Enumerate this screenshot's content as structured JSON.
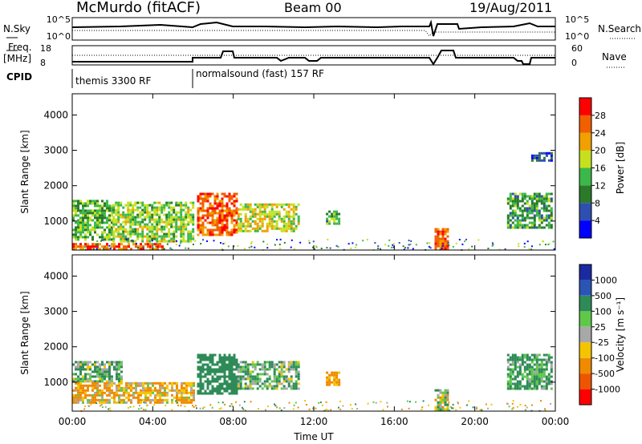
{
  "header": {
    "station": "McMurdo (fitACF)",
    "beam": "Beam 00",
    "date": "19/Aug/2011"
  },
  "strip": {
    "nsky_label": "N.Sky",
    "nsky_ticks": [
      "10^5",
      "10^0"
    ],
    "nsearch_label": "N.Search",
    "freq_label_1": "Freq.",
    "freq_label_2": "[MHz]",
    "freq_ticks": [
      "18",
      "8"
    ],
    "nave_label": "Nave",
    "nave_ticks": [
      "60",
      "0"
    ],
    "cpid_label": "CPID",
    "cpid_1": "themis 3300 RF",
    "cpid_2": "normalsound (fast) 157 RF"
  },
  "colors": {
    "power_scale": [
      "#0000ff",
      "#2f4fb0",
      "#2a7a2a",
      "#3cb84a",
      "#c6e020",
      "#f0a000",
      "#f06000",
      "#ff0000"
    ],
    "velocity_scale": [
      "#ff0000",
      "#ee5500",
      "#f08a00",
      "#f4c400",
      "#a8a8a8",
      "#5fc84a",
      "#2e8b57",
      "#2a55b5",
      "#1a2aa0"
    ]
  },
  "chart_data": [
    {
      "type": "heatmap",
      "name": "power",
      "title": "",
      "xlabel": "",
      "ylabel": "Slant Range [km]",
      "x_ticks": [
        "00:00",
        "04:00",
        "08:00",
        "12:00",
        "16:00",
        "20:00",
        "00:00"
      ],
      "xlim_hours": [
        0,
        24
      ],
      "y_ticks": [
        1000,
        2000,
        3000,
        4000
      ],
      "ylim_km": [
        180,
        4600
      ],
      "colorbar": {
        "label": "Power [dB]",
        "ticks": [
          4,
          8,
          12,
          16,
          20,
          24,
          28
        ],
        "range": [
          0,
          32
        ]
      },
      "regions": [
        {
          "t0": 0.0,
          "t1": 2.0,
          "r0": 500,
          "r1": 1600,
          "value": 14
        },
        {
          "t0": 2.0,
          "t1": 6.0,
          "r0": 400,
          "r1": 1550,
          "value": 16
        },
        {
          "t0": 0.0,
          "t1": 4.5,
          "r0": 180,
          "r1": 380,
          "value": 26
        },
        {
          "t0": 6.2,
          "t1": 8.2,
          "r0": 600,
          "r1": 1800,
          "value": 26
        },
        {
          "t0": 8.2,
          "t1": 11.2,
          "r0": 700,
          "r1": 1500,
          "value": 18
        },
        {
          "t0": 12.6,
          "t1": 13.3,
          "r0": 950,
          "r1": 1300,
          "value": 12
        },
        {
          "t0": 18.0,
          "t1": 18.6,
          "r0": 250,
          "r1": 800,
          "value": 26
        },
        {
          "t0": 21.6,
          "t1": 23.8,
          "r0": 800,
          "r1": 1800,
          "value": 12
        },
        {
          "t0": 22.8,
          "t1": 23.8,
          "r0": 2700,
          "r1": 2950,
          "value": 6
        }
      ]
    },
    {
      "type": "heatmap",
      "name": "velocity",
      "title": "",
      "xlabel": "Time UT",
      "ylabel": "Slant Range [km]",
      "x_ticks": [
        "00:00",
        "04:00",
        "08:00",
        "12:00",
        "16:00",
        "20:00",
        "00:00"
      ],
      "xlim_hours": [
        0,
        24
      ],
      "y_ticks": [
        1000,
        2000,
        3000,
        4000
      ],
      "ylim_km": [
        180,
        4600
      ],
      "colorbar": {
        "label": "Velocity [m s⁻¹]",
        "ticks": [
          "-1000",
          "-500",
          "-100",
          "-25",
          "25",
          "100",
          "500",
          "1000"
        ]
      },
      "regions": [
        {
          "t0": 0.0,
          "t1": 2.5,
          "r0": 1000,
          "r1": 1600,
          "value": 100
        },
        {
          "t0": 0.0,
          "t1": 6.0,
          "r0": 400,
          "r1": 1000,
          "value": -100
        },
        {
          "t0": 6.2,
          "t1": 8.2,
          "r0": 700,
          "r1": 1800,
          "value": 300
        },
        {
          "t0": 8.2,
          "t1": 11.2,
          "r0": 800,
          "r1": 1600,
          "value": 100
        },
        {
          "t0": 12.6,
          "t1": 13.3,
          "r0": 950,
          "r1": 1300,
          "value": -200
        },
        {
          "t0": 18.0,
          "t1": 18.6,
          "r0": 250,
          "r1": 800,
          "value": 0
        },
        {
          "t0": 21.6,
          "t1": 23.8,
          "r0": 800,
          "r1": 1800,
          "value": 150
        }
      ]
    }
  ]
}
